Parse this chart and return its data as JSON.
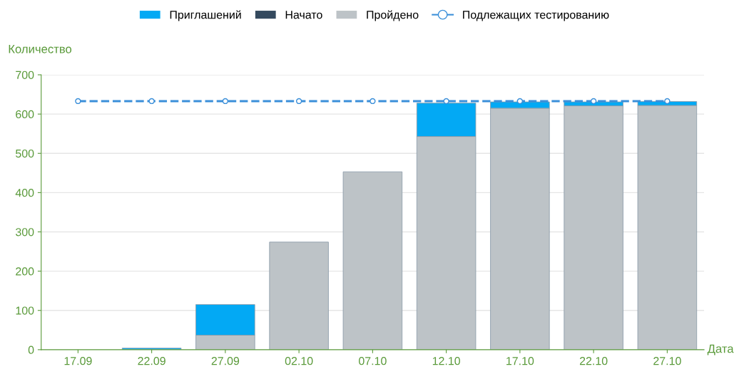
{
  "chart_data": {
    "type": "bar",
    "stacked": true,
    "xlabel": "Дата",
    "ylabel": "Количество",
    "categories": [
      "17.09",
      "22.09",
      "27.09",
      "02.10",
      "07.10",
      "12.10",
      "17.10",
      "22.10",
      "27.10"
    ],
    "series": [
      {
        "name": "Пройдено",
        "color": "#bdc3c7",
        "values": [
          0,
          0,
          37,
          274,
          453,
          543,
          615,
          621,
          622
        ]
      },
      {
        "name": "Начато",
        "color": "#34495e",
        "values": [
          0,
          0,
          0,
          0,
          0,
          0,
          0,
          0,
          0
        ]
      },
      {
        "name": "Приглашений",
        "color": "#03a9f4",
        "values": [
          0,
          4,
          78,
          0,
          0,
          85,
          16,
          10,
          10
        ]
      },
      {
        "name": "Подлежащих тестированию",
        "type": "line",
        "color": "#3b8fd9",
        "marker": "circle",
        "line_style": "dashed",
        "values": [
          633,
          633,
          633,
          633,
          633,
          633,
          633,
          633,
          633
        ]
      }
    ],
    "ylim": [
      0,
      700
    ],
    "yticks": [
      0,
      100,
      200,
      300,
      400,
      500,
      600,
      700
    ],
    "grid": "y",
    "legend": "top"
  }
}
